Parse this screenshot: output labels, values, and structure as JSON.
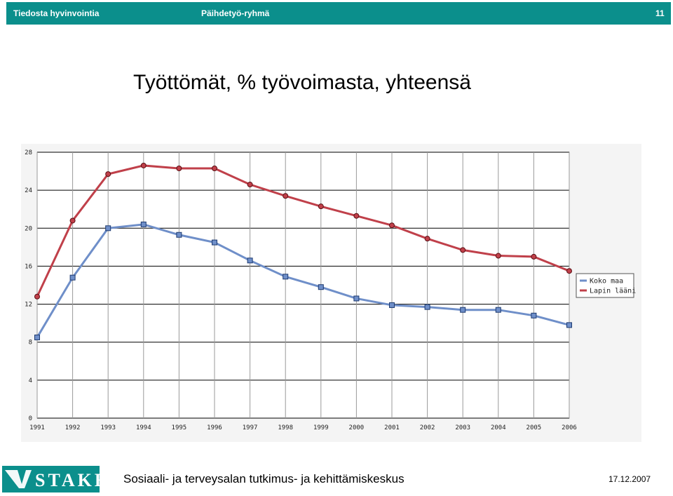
{
  "header": {
    "left_text": "Tiedosta hyvinvointia",
    "center_text": "Päihdetyö-ryhmä",
    "page_number": "11",
    "bar_color": "#0b8f8c"
  },
  "slide": {
    "title": "Työttömät, % työvoimasta, yhteensä"
  },
  "footer": {
    "logo_text": "STAKES",
    "organization": "Sosiaali- ja terveysalan tutkimus- ja kehittämiskeskus",
    "date": "17.12.2007"
  },
  "chart_data": {
    "type": "line",
    "x": [
      1991,
      1992,
      1993,
      1994,
      1995,
      1996,
      1997,
      1998,
      1999,
      2000,
      2001,
      2002,
      2003,
      2004,
      2005,
      2006
    ],
    "ylim": [
      0,
      28
    ],
    "yticks": [
      0,
      4,
      8,
      12,
      16,
      20,
      24,
      28
    ],
    "grid": true,
    "legend_position": "right",
    "series": [
      {
        "name": "Koko maa",
        "color": "#6f8fc9",
        "marker": "square",
        "values": [
          8.5,
          14.8,
          20.0,
          20.4,
          19.3,
          18.5,
          16.6,
          14.9,
          13.8,
          12.6,
          11.9,
          11.7,
          11.4,
          11.4,
          10.8,
          9.8
        ]
      },
      {
        "name": "Lapin lääni",
        "color": "#c0404a",
        "marker": "circle",
        "values": [
          12.8,
          20.8,
          25.7,
          26.6,
          26.3,
          26.3,
          24.6,
          23.4,
          22.3,
          21.3,
          20.3,
          18.9,
          17.7,
          17.1,
          17.0,
          15.5
        ]
      }
    ]
  }
}
